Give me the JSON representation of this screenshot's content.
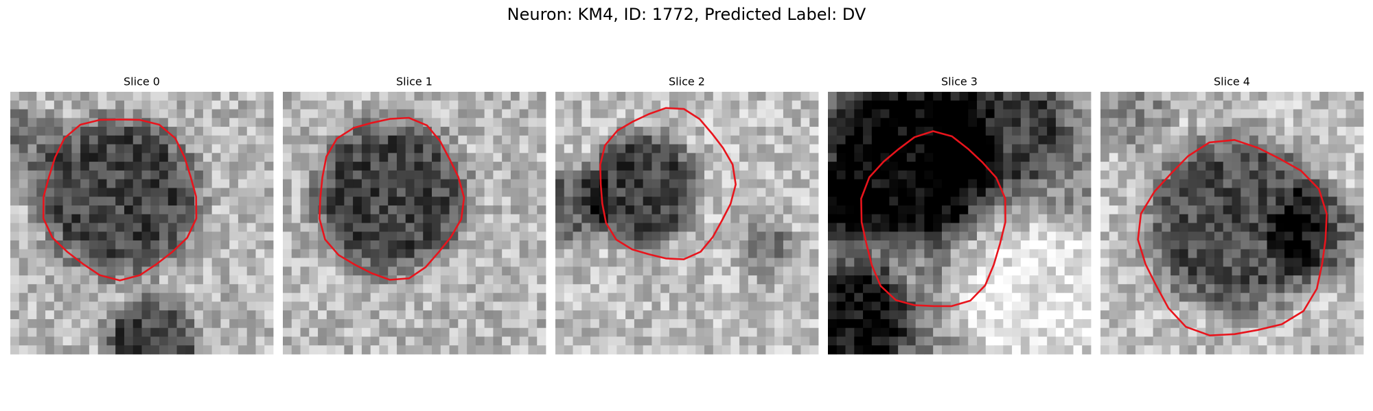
{
  "title": "Neuron: KM4, ID: 1772, Predicted Label: DV",
  "panels": [
    {
      "title": "Slice 0"
    },
    {
      "title": "Slice 1"
    },
    {
      "title": "Slice 2"
    },
    {
      "title": "Slice 3"
    },
    {
      "title": "Slice 4"
    }
  ]
}
